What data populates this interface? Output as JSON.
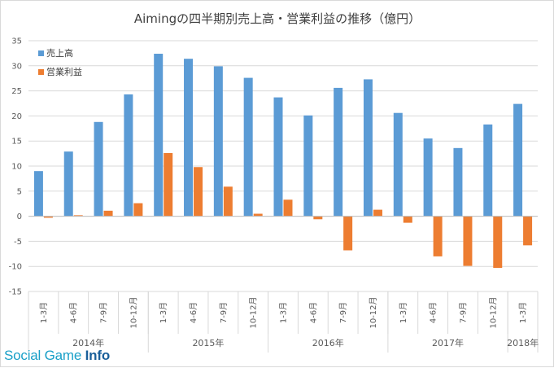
{
  "watermark": {
    "text": "Social Game",
    "strong": "Info"
  },
  "colors": {
    "sales": "#5B9BD5",
    "profit": "#ED7D31",
    "grid": "#d9d9d9",
    "axis": "#bfbfbf"
  },
  "chart_data": {
    "type": "bar",
    "title": "Aimingの四半期別売上高・営業利益の推移（億円）",
    "xlabel": "",
    "ylabel": "",
    "ylim": [
      -15,
      35
    ],
    "yticks": [
      -15,
      -10,
      -5,
      0,
      5,
      10,
      15,
      20,
      25,
      30,
      35
    ],
    "grid": true,
    "legend_position": "top-left",
    "categories": [
      "1-3月",
      "4-6月",
      "7-9月",
      "10-12月",
      "1-3月",
      "4-6月",
      "7-9月",
      "10-12月",
      "1-3月",
      "4-6月",
      "7-9月",
      "10-12月",
      "1-3月",
      "4-6月",
      "7-9月",
      "10-12月",
      "1-3月"
    ],
    "year_groups": [
      {
        "label": "2014年",
        "count": 4
      },
      {
        "label": "2015年",
        "count": 4
      },
      {
        "label": "2016年",
        "count": 4
      },
      {
        "label": "2017年",
        "count": 4
      },
      {
        "label": "2018年",
        "count": 1
      }
    ],
    "series": [
      {
        "name": "売上高",
        "values": [
          9.0,
          12.9,
          18.8,
          24.3,
          32.4,
          31.4,
          29.9,
          27.6,
          23.7,
          20.1,
          25.6,
          27.3,
          20.6,
          15.5,
          13.6,
          18.3,
          22.4
        ]
      },
      {
        "name": "営業利益",
        "values": [
          -0.3,
          0.2,
          1.1,
          2.6,
          12.6,
          9.8,
          5.9,
          0.5,
          3.3,
          -0.6,
          -6.8,
          1.3,
          -1.3,
          -8.0,
          -9.9,
          -10.3,
          -5.8
        ]
      }
    ]
  }
}
